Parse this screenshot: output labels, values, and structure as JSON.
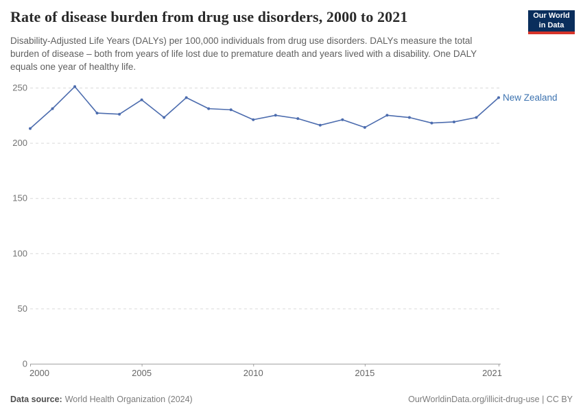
{
  "header": {
    "title": "Rate of disease burden from drug use disorders, 2000 to 2021",
    "subtitle": "Disability-Adjusted Life Years (DALYs) per 100,000 individuals from drug use disorders. DALYs measure the total burden of disease – both from years of life lost due to premature death and years lived with a disability. One DALY equals one year of healthy life.",
    "logo": {
      "line1": "Our World",
      "line2": "in Data",
      "bg_color": "#0a2e5c",
      "accent_color": "#d7342a"
    }
  },
  "chart_data": {
    "type": "line",
    "title": "Rate of disease burden from drug use disorders, 2000 to 2021",
    "ylabel": "DALYs per 100,000 individuals",
    "xlabel": "",
    "xlim": [
      2000,
      2021
    ],
    "ylim": [
      0,
      250
    ],
    "xticks": [
      2000,
      2005,
      2010,
      2015,
      2021
    ],
    "yticks": [
      0,
      50,
      100,
      150,
      200,
      250
    ],
    "grid": "horizontal-dashed",
    "legend_position": "end-of-line",
    "x": [
      2000,
      2001,
      2002,
      2003,
      2004,
      2005,
      2006,
      2007,
      2008,
      2009,
      2010,
      2011,
      2012,
      2013,
      2014,
      2015,
      2016,
      2017,
      2018,
      2019,
      2020,
      2021
    ],
    "series": [
      {
        "name": "New Zealand",
        "color": "#4c6cae",
        "label_color": "#3d73b0",
        "values": [
          213,
          231,
          251,
          227,
          226,
          239,
          223,
          241,
          231,
          230,
          221,
          225,
          222,
          216,
          221,
          214,
          225,
          223,
          218,
          219,
          223,
          241
        ]
      }
    ],
    "colors": {
      "gridline": "#d9d9d9",
      "axis": "#a1a1a1",
      "y_tick_text": "#737373",
      "x_tick_text": "#666666"
    }
  },
  "footer": {
    "source_label": "Data source:",
    "source_value": "World Health Organization (2024)",
    "credit": "OurWorldinData.org/illicit-drug-use | CC BY"
  }
}
